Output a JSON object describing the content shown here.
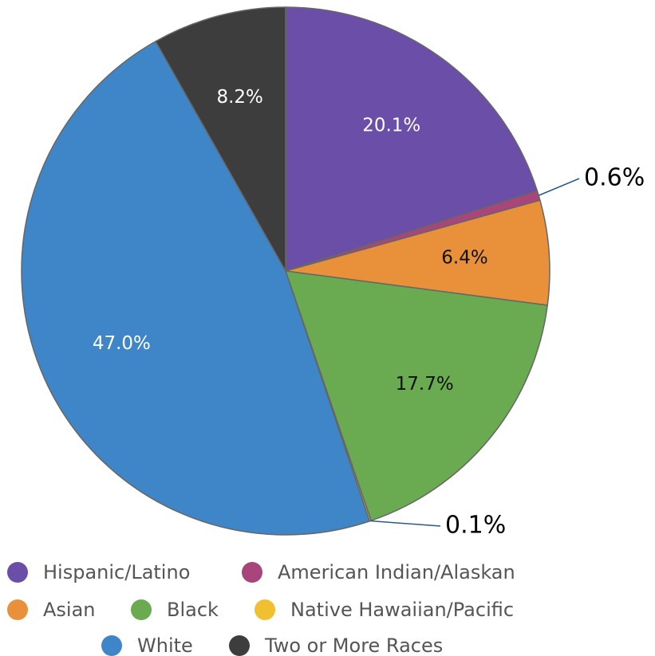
{
  "chart_data": {
    "type": "pie",
    "categories": [
      "Hispanic/Latino",
      "American Indian/Alaskan",
      "Asian",
      "Black",
      "Native Hawaiian/Pacific",
      "White",
      "Two or More Races"
    ],
    "values": [
      20.1,
      0.6,
      6.4,
      17.7,
      0.1,
      47.0,
      8.2
    ],
    "value_labels": [
      "20.1%",
      "0.6%",
      "6.4%",
      "17.7%",
      "0.1%",
      "47.0%",
      "8.2%"
    ],
    "colors": [
      "#6a4ea8",
      "#a8457a",
      "#e8913a",
      "#6aaa50",
      "#f0c030",
      "#3f86c8",
      "#3d3d3d"
    ],
    "legend": "bottom"
  }
}
